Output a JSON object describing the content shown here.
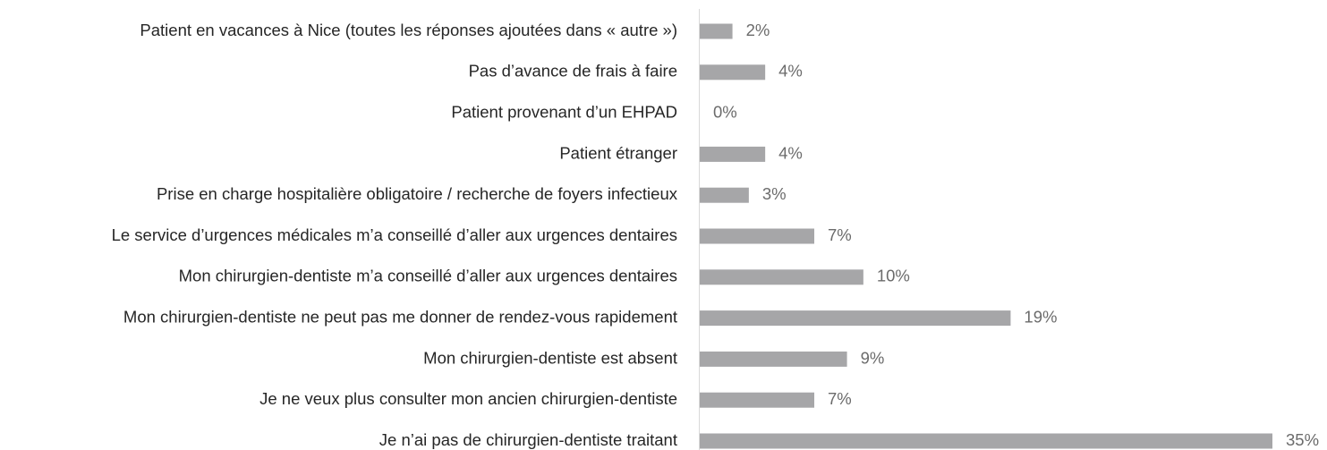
{
  "chart_data": {
    "type": "bar",
    "orientation": "horizontal",
    "categories": [
      "Patient en vacances à Nice (toutes les réponses ajoutées dans « autre »)",
      "Pas d’avance de frais à faire",
      "Patient provenant d’un EHPAD",
      "Patient étranger",
      "Prise en charge hospitalière obligatoire / recherche de foyers infectieux",
      "Le service d’urgences médicales m’a conseillé d’aller aux urgences dentaires",
      "Mon chirurgien-dentiste m’a conseillé d’aller aux urgences dentaires",
      "Mon chirurgien-dentiste ne peut pas me donner de rendez-vous rapidement",
      "Mon chirurgien-dentiste est absent",
      "Je ne veux plus consulter mon ancien chirurgien-dentiste",
      "Je n’ai pas de chirurgien-dentiste traitant"
    ],
    "values": [
      2,
      4,
      0,
      4,
      3,
      7,
      10,
      19,
      9,
      7,
      35
    ],
    "value_labels": [
      "2%",
      "4%",
      "0%",
      "4%",
      "3%",
      "7%",
      "10%",
      "19%",
      "9%",
      "7%",
      "35%"
    ],
    "color": "#a6a6a8",
    "xlim": [
      0,
      35
    ]
  }
}
